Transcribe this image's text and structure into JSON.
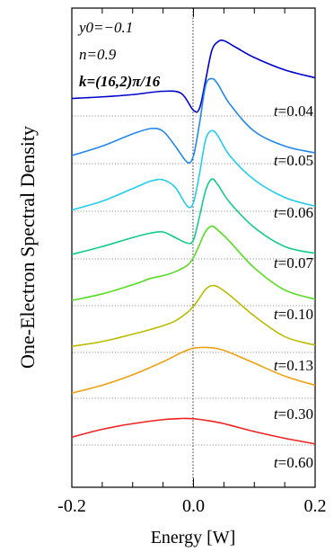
{
  "chart_data": {
    "type": "line",
    "title": "",
    "xlabel": "Energy [W]",
    "ylabel": "One-Electron Spectral Density",
    "xlim": [
      -0.2,
      0.2
    ],
    "x_ticks": [
      "-0.2",
      "0.0",
      "0.2"
    ],
    "y_ticks": [],
    "grid": false,
    "zero_line": "dotted vertical at x = 0.0",
    "parameters": {
      "y0": "y0=−0.1",
      "n": "n=0.9",
      "k": "k=(16,2)π/16"
    },
    "curve_shape": "offset spectra; each curve drawn as asymmetric peak(s) on a sloped background, baseline shown dotted",
    "series": [
      {
        "name": "t=0.04",
        "color": "#0000cc",
        "x": [
          -0.2,
          -0.15,
          -0.1,
          -0.05,
          -0.02,
          0.0,
          0.01,
          0.02,
          0.03,
          0.04,
          0.05,
          0.07,
          0.1,
          0.15,
          0.2
        ],
        "y": [
          0.78,
          0.85,
          0.95,
          1.1,
          1.0,
          0.25,
          0.35,
          1.6,
          2.9,
          3.3,
          3.35,
          3.05,
          2.6,
          2.05,
          1.7
        ]
      },
      {
        "name": "t=0.05",
        "color": "#2288ee",
        "x": [
          -0.2,
          -0.15,
          -0.1,
          -0.07,
          -0.05,
          -0.03,
          -0.01,
          0.0,
          0.01,
          0.02,
          0.03,
          0.04,
          0.06,
          0.1,
          0.15,
          0.2
        ],
        "y": [
          0.3,
          0.65,
          1.1,
          1.3,
          1.2,
          0.65,
          0.05,
          0.3,
          1.5,
          2.9,
          3.15,
          2.95,
          2.2,
          1.2,
          0.65,
          0.4
        ]
      },
      {
        "name": "t=0.06",
        "color": "#22ccee",
        "x": [
          -0.2,
          -0.15,
          -0.1,
          -0.07,
          -0.05,
          -0.03,
          -0.01,
          0.0,
          0.01,
          0.02,
          0.03,
          0.04,
          0.06,
          0.1,
          0.15,
          0.2
        ],
        "y": [
          0.05,
          0.4,
          0.9,
          1.2,
          1.25,
          0.95,
          0.2,
          0.35,
          1.5,
          2.85,
          3.2,
          3.0,
          2.2,
          1.25,
          0.55,
          0.2
        ]
      },
      {
        "name": "t=0.07",
        "color": "#11cc88",
        "x": [
          -0.2,
          -0.15,
          -0.1,
          -0.07,
          -0.05,
          -0.03,
          -0.01,
          0.0,
          0.01,
          0.02,
          0.03,
          0.04,
          0.06,
          0.1,
          0.15,
          0.2
        ],
        "y": [
          0.2,
          0.55,
          0.95,
          1.15,
          1.2,
          0.95,
          0.7,
          0.85,
          1.9,
          3.05,
          3.55,
          3.3,
          2.5,
          1.4,
          0.55,
          0.25
        ]
      },
      {
        "name": "t=0.10",
        "color": "#55dd22",
        "x": [
          -0.2,
          -0.15,
          -0.1,
          -0.07,
          -0.05,
          -0.03,
          -0.01,
          0.0,
          0.01,
          0.02,
          0.03,
          0.04,
          0.06,
          0.1,
          0.15,
          0.2
        ],
        "y": [
          0.2,
          0.45,
          0.8,
          1.05,
          1.15,
          1.3,
          1.55,
          1.85,
          2.35,
          2.85,
          3.05,
          2.9,
          2.45,
          1.45,
          0.6,
          0.25
        ]
      },
      {
        "name": "t=0.13",
        "color": "#bbbb00",
        "x": [
          -0.2,
          -0.15,
          -0.1,
          -0.07,
          -0.05,
          -0.03,
          -0.01,
          0.0,
          0.01,
          0.02,
          0.03,
          0.04,
          0.06,
          0.1,
          0.15,
          0.2
        ],
        "y": [
          0.25,
          0.45,
          0.75,
          0.95,
          1.1,
          1.3,
          1.65,
          1.9,
          2.25,
          2.6,
          2.75,
          2.7,
          2.35,
          1.5,
          0.65,
          0.3
        ]
      },
      {
        "name": "t=0.30",
        "color": "#f0a010",
        "x": [
          -0.2,
          -0.15,
          -0.1,
          -0.05,
          -0.02,
          0.0,
          0.02,
          0.04,
          0.06,
          0.1,
          0.15,
          0.2
        ],
        "y": [
          0.2,
          0.5,
          0.9,
          1.4,
          1.75,
          1.92,
          1.95,
          1.9,
          1.75,
          1.35,
          0.85,
          0.5
        ]
      },
      {
        "name": "t=0.60",
        "color": "#ee2222",
        "x": [
          -0.2,
          -0.15,
          -0.1,
          -0.05,
          -0.02,
          0.0,
          0.02,
          0.05,
          0.1,
          0.15,
          0.2
        ],
        "y": [
          0.35,
          0.7,
          0.95,
          1.13,
          1.18,
          1.17,
          1.1,
          0.95,
          0.6,
          0.3,
          0.05
        ]
      }
    ]
  }
}
